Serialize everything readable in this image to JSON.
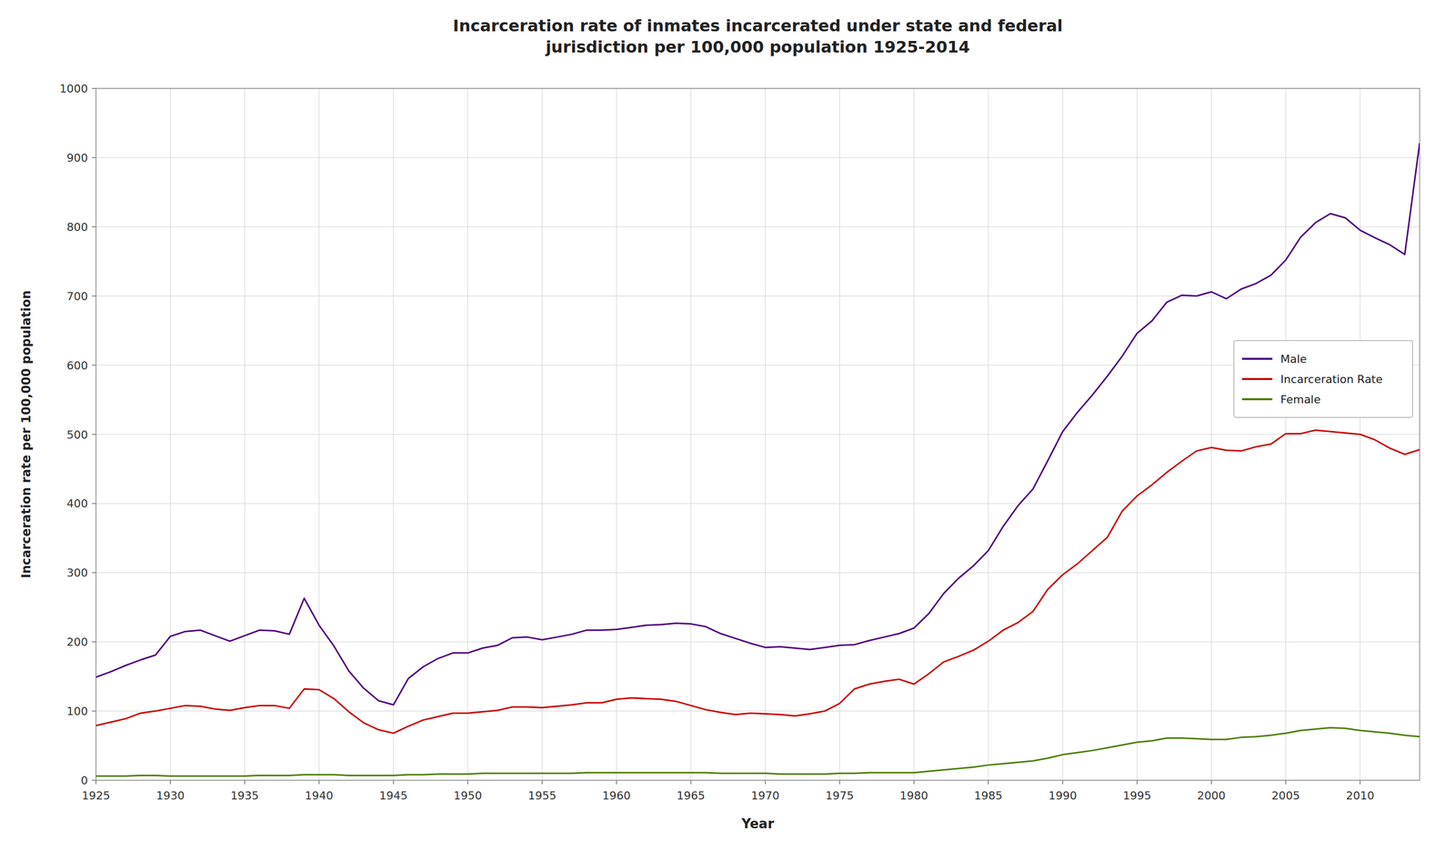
{
  "chart_data": {
    "type": "line",
    "title": "Incarceration rate of inmates incarcerated under state and federal\njurisdiction per 100,000 population 1925-2014",
    "x_label": "Year",
    "y_label": "Incarceration rate per 100,000 population",
    "x": [
      1925,
      1926,
      1927,
      1928,
      1929,
      1930,
      1931,
      1932,
      1933,
      1934,
      1935,
      1936,
      1937,
      1938,
      1939,
      1940,
      1941,
      1942,
      1943,
      1944,
      1945,
      1946,
      1947,
      1948,
      1949,
      1950,
      1951,
      1952,
      1953,
      1954,
      1955,
      1956,
      1957,
      1958,
      1959,
      1960,
      1961,
      1962,
      1963,
      1964,
      1965,
      1966,
      1967,
      1968,
      1969,
      1970,
      1971,
      1972,
      1973,
      1974,
      1975,
      1976,
      1977,
      1978,
      1979,
      1980,
      1981,
      1982,
      1983,
      1984,
      1985,
      1986,
      1987,
      1988,
      1989,
      1990,
      1991,
      1992,
      1993,
      1994,
      1995,
      1996,
      1997,
      1998,
      1999,
      2000,
      2001,
      2002,
      2003,
      2004,
      2005,
      2006,
      2007,
      2008,
      2009,
      2010,
      2011,
      2012,
      2013,
      2014
    ],
    "series": [
      {
        "name": "Male",
        "color": "#4B0082",
        "values": [
          149,
          157,
          166,
          174,
          181,
          208,
          215,
          217,
          209,
          201,
          209,
          217,
          216,
          211,
          263,
          224,
          194,
          158,
          133,
          115,
          109,
          147,
          164,
          176,
          184,
          184,
          191,
          195,
          206,
          207,
          203,
          207,
          211,
          217,
          217,
          218,
          221,
          224,
          225,
          227,
          226,
          222,
          212,
          205,
          198,
          192,
          193,
          191,
          189,
          192,
          195,
          196,
          202,
          207,
          212,
          220,
          241,
          270,
          292,
          310,
          332,
          367,
          397,
          421,
          462,
          504,
          532,
          557,
          584,
          613,
          646,
          664,
          691,
          701,
          700,
          706,
          696,
          710,
          718,
          730,
          752,
          785,
          806,
          819,
          813,
          795,
          784,
          774,
          760,
          921
        ]
      },
      {
        "name": "Incarceration Rate",
        "color": "#cc0000",
        "values": [
          79,
          84,
          89,
          97,
          100,
          104,
          108,
          107,
          103,
          101,
          105,
          108,
          108,
          104,
          132,
          131,
          118,
          99,
          83,
          73,
          68,
          78,
          87,
          92,
          97,
          97,
          99,
          101,
          106,
          106,
          105,
          107,
          109,
          112,
          112,
          117,
          119,
          118,
          117,
          114,
          108,
          102,
          98,
          95,
          97,
          96,
          95,
          93,
          96,
          100,
          111,
          132,
          139,
          143,
          146,
          139,
          154,
          171,
          179,
          188,
          201,
          217,
          228,
          244,
          276,
          297,
          313,
          332,
          351,
          389,
          411,
          427,
          445,
          461,
          476,
          481,
          477,
          476,
          482,
          486,
          501,
          501,
          506,
          504,
          502,
          500,
          492,
          480,
          471,
          478
        ]
      },
      {
        "name": "Female",
        "color": "#4a7c00",
        "values": [
          6,
          6,
          6,
          7,
          7,
          6,
          6,
          6,
          6,
          6,
          6,
          7,
          7,
          7,
          8,
          8,
          8,
          7,
          7,
          7,
          7,
          8,
          8,
          9,
          9,
          9,
          10,
          10,
          10,
          10,
          10,
          10,
          10,
          11,
          11,
          11,
          11,
          11,
          11,
          11,
          11,
          11,
          10,
          10,
          10,
          10,
          9,
          9,
          9,
          9,
          10,
          10,
          11,
          11,
          11,
          11,
          13,
          15,
          17,
          19,
          22,
          24,
          26,
          28,
          32,
          37,
          40,
          43,
          47,
          51,
          55,
          57,
          61,
          61,
          60,
          59,
          59,
          62,
          63,
          65,
          68,
          72,
          74,
          76,
          75,
          72,
          70,
          68,
          65,
          63
        ]
      }
    ],
    "xlim": [
      1925,
      2014
    ],
    "ylim": [
      0,
      1000
    ],
    "xticks": [
      1925,
      1930,
      1935,
      1940,
      1945,
      1950,
      1955,
      1960,
      1965,
      1970,
      1975,
      1980,
      1985,
      1990,
      1995,
      2000,
      2005,
      2010
    ],
    "yticks": [
      0,
      100,
      200,
      300,
      400,
      500,
      600,
      700,
      800,
      900,
      1000
    ],
    "grid": true,
    "legend": "right"
  }
}
